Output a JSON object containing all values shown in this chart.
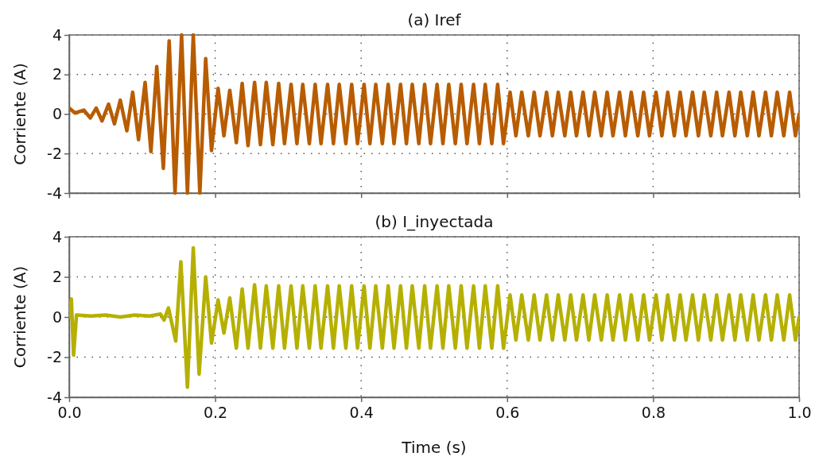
{
  "chart_data": [
    {
      "type": "line",
      "title": "(a) Iref",
      "ylabel": "Corriente (A)",
      "xlim": [
        0,
        1
      ],
      "ylim": [
        -4,
        4
      ],
      "xticks": [
        0,
        0.2,
        0.4,
        0.6,
        0.8,
        1
      ],
      "yticks": [
        -4,
        -2,
        0,
        2,
        4
      ],
      "grid": true,
      "tick_labels": "y",
      "marker": "none",
      "line_style": "solid",
      "series": [
        {
          "color": "#b85c00",
          "x": [
            0,
            0.008,
            0.02,
            0.029,
            0.037,
            0.045,
            0.054,
            0.062,
            0.07,
            0.079,
            0.087,
            0.095,
            0.104,
            0.112,
            0.12,
            0.129,
            0.137,
            0.145,
            0.154,
            0.162,
            0.17,
            0.179,
            0.187,
            0.195,
            0.204,
            0.212,
            0.22,
            0.229,
            0.237,
            0.245,
            0.254,
            0.262,
            0.27,
            0.279,
            0.287,
            0.295,
            0.304,
            0.312,
            0.32,
            0.329,
            0.337,
            0.345,
            0.354,
            0.362,
            0.37,
            0.379,
            0.387,
            0.395,
            0.404,
            0.412,
            0.42,
            0.429,
            0.437,
            0.445,
            0.454,
            0.462,
            0.47,
            0.479,
            0.487,
            0.495,
            0.504,
            0.512,
            0.52,
            0.529,
            0.537,
            0.545,
            0.554,
            0.562,
            0.57,
            0.579,
            0.587,
            0.595,
            0.604,
            0.612,
            0.62,
            0.629,
            0.637,
            0.645,
            0.654,
            0.662,
            0.67,
            0.679,
            0.687,
            0.695,
            0.704,
            0.712,
            0.72,
            0.729,
            0.737,
            0.745,
            0.754,
            0.762,
            0.77,
            0.779,
            0.787,
            0.795,
            0.804,
            0.812,
            0.82,
            0.829,
            0.837,
            0.845,
            0.854,
            0.862,
            0.87,
            0.879,
            0.887,
            0.895,
            0.904,
            0.912,
            0.92,
            0.929,
            0.937,
            0.945,
            0.954,
            0.962,
            0.97,
            0.979,
            0.987,
            0.995,
            1.0
          ],
          "values": [
            0.3,
            0.05,
            0.2,
            -0.2,
            0.3,
            -0.35,
            0.5,
            -0.5,
            0.7,
            -0.85,
            1.1,
            -1.3,
            1.6,
            -1.9,
            2.4,
            -2.75,
            3.7,
            -4,
            4,
            -4,
            4,
            -4,
            2.8,
            -1.85,
            1.3,
            -1.1,
            1.2,
            -1.45,
            1.55,
            -1.6,
            1.6,
            -1.55,
            1.6,
            -1.55,
            1.55,
            -1.5,
            1.5,
            -1.5,
            1.5,
            -1.5,
            1.5,
            -1.5,
            1.5,
            -1.5,
            1.5,
            -1.5,
            1.5,
            -1.5,
            1.5,
            -1.5,
            1.5,
            -1.5,
            1.5,
            -1.5,
            1.5,
            -1.5,
            1.5,
            -1.5,
            1.5,
            -1.5,
            1.5,
            -1.5,
            1.5,
            -1.5,
            1.5,
            -1.5,
            1.5,
            -1.5,
            1.5,
            -1.5,
            1.5,
            -1.5,
            1.1,
            -1.1,
            1.1,
            -1.1,
            1.1,
            -1.1,
            1.1,
            -1.1,
            1.1,
            -1.1,
            1.1,
            -1.1,
            1.1,
            -1.1,
            1.1,
            -1.1,
            1.1,
            -1.1,
            1.1,
            -1.1,
            1.1,
            -1.1,
            1.1,
            -1.1,
            1.1,
            -1.1,
            1.1,
            -1.1,
            1.1,
            -1.1,
            1.1,
            -1.1,
            1.1,
            -1.1,
            1.1,
            -1.1,
            1.1,
            -1.1,
            1.1,
            -1.1,
            1.1,
            -1.1,
            1.1,
            -1.1,
            1.1,
            -1.1,
            1.1,
            -1.1,
            0
          ]
        }
      ]
    },
    {
      "type": "line",
      "title": "(b) I_inyectada",
      "xlabel": "Time (s)",
      "ylabel": "Corriente (A)",
      "xlim": [
        0,
        1
      ],
      "ylim": [
        -4,
        4
      ],
      "xticks": [
        {
          "value": 0,
          "label": "0.0"
        },
        {
          "value": 0.2,
          "label": "0.2"
        },
        {
          "value": 0.4,
          "label": "0.4"
        },
        {
          "value": 0.6,
          "label": "0.6"
        },
        {
          "value": 0.8,
          "label": "0.8"
        },
        {
          "value": 1,
          "label": "1.0"
        }
      ],
      "yticks": [
        -4,
        -2,
        0,
        2,
        4
      ],
      "grid": true,
      "marker": "none",
      "line_style": "solid",
      "series": [
        {
          "color": "#b5b000",
          "x": [
            0,
            0.003,
            0.006,
            0.01,
            0.03,
            0.05,
            0.07,
            0.09,
            0.11,
            0.125,
            0.13,
            0.136,
            0.146,
            0.153,
            0.162,
            0.17,
            0.178,
            0.187,
            0.195,
            0.204,
            0.212,
            0.22,
            0.229,
            0.237,
            0.245,
            0.254,
            0.262,
            0.27,
            0.279,
            0.287,
            0.295,
            0.304,
            0.312,
            0.32,
            0.329,
            0.337,
            0.345,
            0.354,
            0.362,
            0.37,
            0.379,
            0.387,
            0.395,
            0.404,
            0.412,
            0.42,
            0.429,
            0.437,
            0.445,
            0.454,
            0.462,
            0.47,
            0.479,
            0.487,
            0.495,
            0.504,
            0.512,
            0.52,
            0.529,
            0.537,
            0.545,
            0.554,
            0.562,
            0.57,
            0.579,
            0.587,
            0.595,
            0.604,
            0.612,
            0.62,
            0.629,
            0.637,
            0.645,
            0.654,
            0.662,
            0.67,
            0.679,
            0.687,
            0.695,
            0.704,
            0.712,
            0.72,
            0.729,
            0.737,
            0.745,
            0.754,
            0.762,
            0.77,
            0.779,
            0.787,
            0.795,
            0.804,
            0.812,
            0.82,
            0.829,
            0.837,
            0.845,
            0.854,
            0.862,
            0.87,
            0.879,
            0.887,
            0.895,
            0.904,
            0.912,
            0.92,
            0.929,
            0.937,
            0.945,
            0.954,
            0.962,
            0.97,
            0.979,
            0.987,
            0.995,
            1.0
          ],
          "values": [
            0,
            0.9,
            -1.9,
            0.1,
            0.05,
            0.1,
            0,
            0.1,
            0.05,
            0.15,
            -0.15,
            0.45,
            -1.2,
            2.75,
            -3.5,
            3.45,
            -2.85,
            2,
            -1.3,
            0.85,
            -0.8,
            0.95,
            -1.55,
            1.4,
            -1.55,
            1.6,
            -1.55,
            1.55,
            -1.55,
            1.55,
            -1.55,
            1.55,
            -1.55,
            1.55,
            -1.55,
            1.55,
            -1.55,
            1.55,
            -1.55,
            1.55,
            -1.55,
            1.55,
            -1.55,
            1.55,
            -1.55,
            1.55,
            -1.55,
            1.55,
            -1.55,
            1.55,
            -1.55,
            1.55,
            -1.55,
            1.55,
            -1.55,
            1.55,
            -1.55,
            1.55,
            -1.55,
            1.55,
            -1.55,
            1.55,
            -1.55,
            1.55,
            -1.55,
            1.55,
            -1.55,
            1.1,
            -1.15,
            1.1,
            -1.15,
            1.1,
            -1.15,
            1.1,
            -1.15,
            1.1,
            -1.15,
            1.1,
            -1.15,
            1.1,
            -1.15,
            1.1,
            -1.15,
            1.1,
            -1.15,
            1.1,
            -1.15,
            1.1,
            -1.15,
            1.1,
            -1.15,
            1.1,
            -1.15,
            1.1,
            -1.15,
            1.1,
            -1.15,
            1.1,
            -1.15,
            1.1,
            -1.15,
            1.1,
            -1.15,
            1.1,
            -1.15,
            1.1,
            -1.15,
            1.1,
            -1.15,
            1.1,
            -1.15,
            1.1,
            -1.15,
            1.1,
            -1.15,
            0
          ]
        }
      ]
    }
  ]
}
